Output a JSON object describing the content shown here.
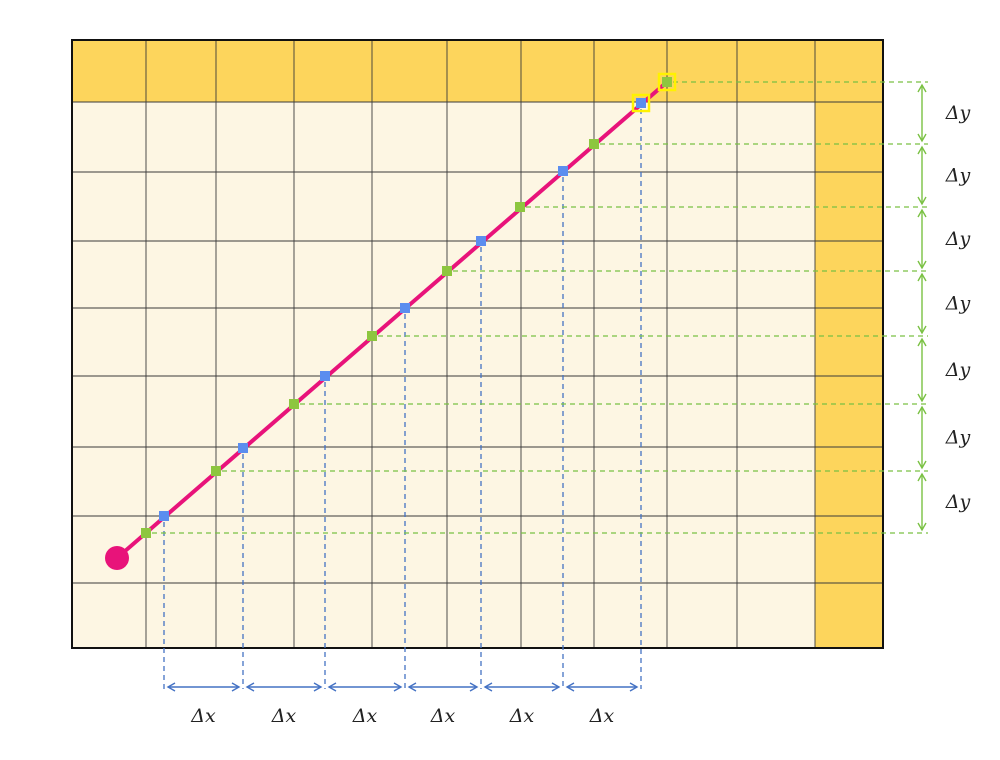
{
  "labels": {
    "delta_x": "Δx",
    "delta_y": "Δy"
  },
  "colors": {
    "grid_fill": "#FDF6E3",
    "highlight_band": "#FDD55C",
    "grid_line": "#3a3a3a",
    "ray": "#E8137A",
    "start_point": "#E8137A",
    "x_crossing": "#5B8DEF",
    "y_crossing": "#8DC63F",
    "current_cell_outline": "#FFF200",
    "x_guide": "#4472C4",
    "y_guide": "#7AC143"
  },
  "icons": {
    "start": "filled-circle",
    "x_crossing": "blue-square",
    "y_crossing": "green-square"
  }
}
